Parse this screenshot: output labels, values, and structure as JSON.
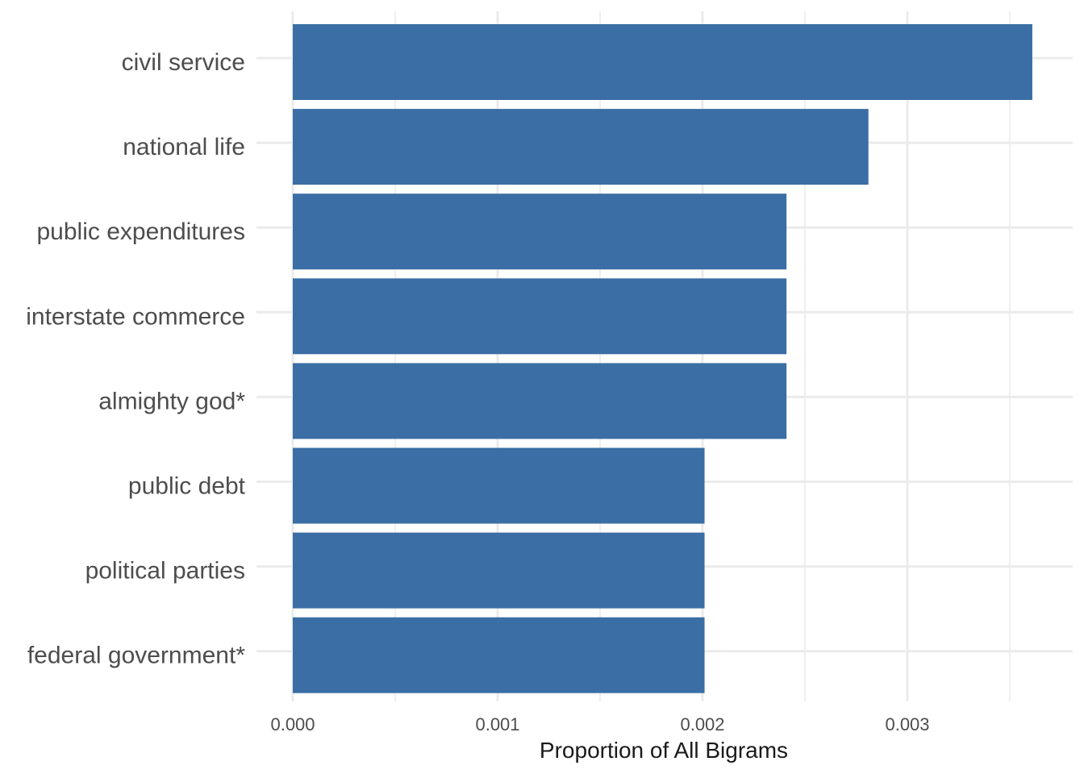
{
  "chart_data": {
    "type": "bar",
    "orientation": "horizontal",
    "categories": [
      "civil service",
      "national life",
      "public expenditures",
      "interstate commerce",
      "almighty god*",
      "public debt",
      "political parties",
      "federal government*"
    ],
    "values": [
      0.00361,
      0.00281,
      0.00241,
      0.00241,
      0.00241,
      0.00201,
      0.00201,
      0.00201
    ],
    "xlabel": "Proportion of All Bigrams",
    "ylabel": "",
    "title": "",
    "xlim": [
      0,
      0.0036
    ],
    "x_ticks": [
      {
        "value": 0,
        "label": "0.000"
      },
      {
        "value": 0.001,
        "label": "0.001"
      },
      {
        "value": 0.002,
        "label": "0.002"
      },
      {
        "value": 0.003,
        "label": "0.003"
      }
    ],
    "x_minor_ticks": [
      0.0005,
      0.0015,
      0.0025,
      0.0035
    ],
    "grid": true,
    "legend": "none",
    "bar_color": "#3a6ea5",
    "grid_color": "#ebebeb"
  }
}
